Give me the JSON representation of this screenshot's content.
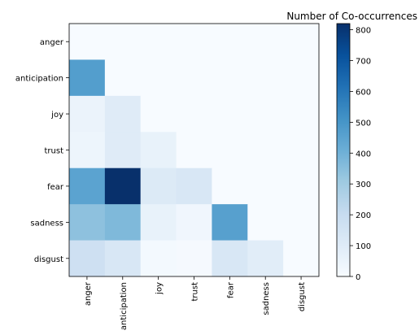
{
  "chart_data": {
    "type": "heatmap",
    "title": "",
    "colorbar_label": "Number of Co-occurrences",
    "categories": [
      "anger",
      "anticipation",
      "joy",
      "trust",
      "fear",
      "sadness",
      "disgust"
    ],
    "colorscale": "Blues",
    "colorbar_range": [
      0,
      820
    ],
    "colorbar_ticks": [
      0,
      100,
      200,
      300,
      400,
      500,
      600,
      700,
      800
    ],
    "matrix": [
      [
        0,
        0,
        0,
        0,
        0,
        0,
        0
      ],
      [
        470,
        0,
        0,
        0,
        0,
        0,
        0
      ],
      [
        50,
        100,
        0,
        0,
        0,
        0,
        0
      ],
      [
        40,
        100,
        60,
        0,
        0,
        0,
        0
      ],
      [
        450,
        820,
        110,
        130,
        0,
        0,
        0
      ],
      [
        340,
        370,
        60,
        30,
        460,
        0,
        0
      ],
      [
        170,
        130,
        15,
        10,
        130,
        90,
        0
      ]
    ],
    "xlabel": "",
    "ylabel": ""
  }
}
